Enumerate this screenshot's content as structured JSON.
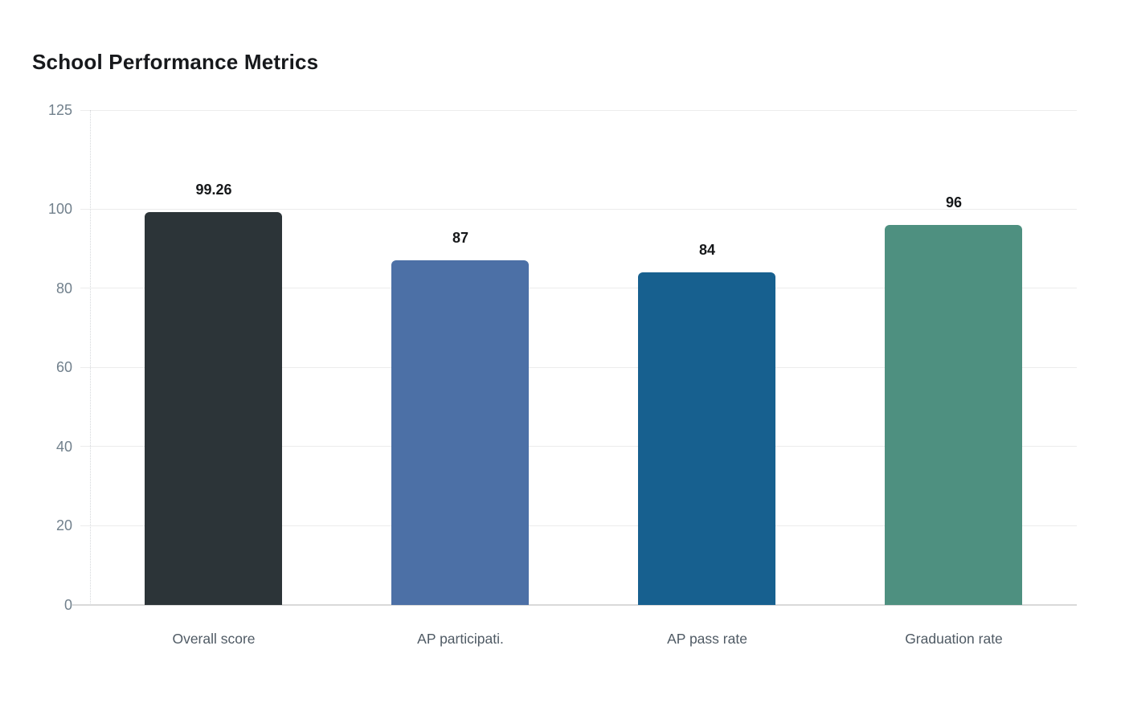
{
  "chart_data": {
    "type": "bar",
    "title": "School Performance Metrics",
    "categories": [
      "Overall score",
      "AP participati.",
      "AP pass rate",
      "Graduation rate"
    ],
    "values": [
      99.26,
      87,
      84,
      96
    ],
    "value_labels": [
      "99.26",
      "87",
      "84",
      "96"
    ],
    "bar_colors": [
      "#2c3438",
      "#4c70a6",
      "#17608f",
      "#4e9080"
    ],
    "yticks": [
      0,
      20,
      40,
      60,
      80,
      100,
      125
    ],
    "ylim": [
      0,
      125
    ],
    "xlabel": "",
    "ylabel": "",
    "grid": "horizontal-only",
    "legend": "none",
    "colors": {
      "background": "#ffffff",
      "grid_line": "#ececec",
      "baseline": "#d9d9d9",
      "axis_dotted_line": "#d4d7da",
      "tick_label": "#71808c",
      "category_label": "#4f5a64",
      "title": "#17191c",
      "value_label": "#16181a"
    }
  }
}
